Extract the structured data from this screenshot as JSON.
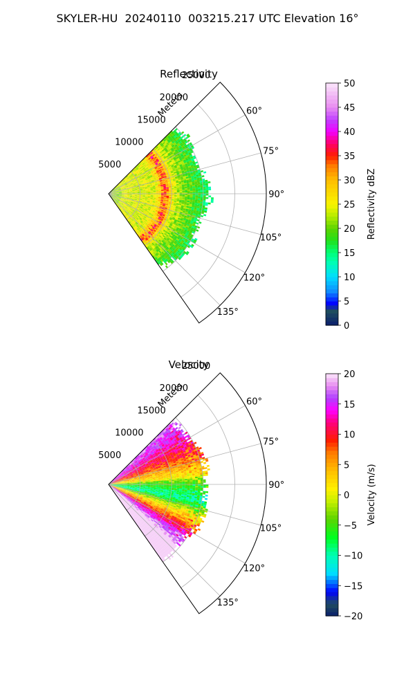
{
  "suptitle": "SKYLER-HU  20240110  003215.217 UTC Elevation 16°",
  "chart_data": [
    {
      "type": "heatmap",
      "subtype": "polar-sector (PPI radar scan)",
      "title": "Reflectivity",
      "radial_axis_label": "Meters",
      "radial_ticks": [
        5000,
        10000,
        15000,
        20000,
        25000
      ],
      "radial_tick_labels": [
        "5000",
        "10000",
        "15000",
        "20000",
        "25000"
      ],
      "rlim": [
        0,
        25000
      ],
      "angle_range_deg": [
        45,
        145
      ],
      "angle_ticks": [
        60,
        75,
        90,
        105,
        120,
        135
      ],
      "angle_tick_labels": [
        "60°",
        "75°",
        "90°",
        "105°",
        "120°",
        "135°"
      ],
      "grid": true,
      "data_extent_m": 15000,
      "field": "reflectivity",
      "colorbar": {
        "label": "Reflectivity dBZ",
        "range": [
          0,
          50
        ],
        "ticks": [
          0,
          5,
          10,
          15,
          20,
          25,
          30,
          35,
          40,
          45,
          50
        ],
        "tick_labels": [
          "0",
          "5",
          "10",
          "15",
          "20",
          "25",
          "30",
          "35",
          "40",
          "45",
          "50"
        ],
        "colormap": [
          [
            0,
            "#0b1f6e"
          ],
          [
            3,
            "#1f4d5e"
          ],
          [
            4.5,
            "#0000ff"
          ],
          [
            7,
            "#0f8cff"
          ],
          [
            10,
            "#00dcff"
          ],
          [
            13,
            "#00ffb4"
          ],
          [
            15,
            "#00ff78"
          ],
          [
            17.5,
            "#22e01a"
          ],
          [
            20,
            "#5cd400"
          ],
          [
            22.5,
            "#b4ec00"
          ],
          [
            25,
            "#f8f400"
          ],
          [
            30,
            "#ffbe00"
          ],
          [
            33,
            "#ff7a00"
          ],
          [
            35,
            "#ff1e00"
          ],
          [
            37.5,
            "#ff0066"
          ],
          [
            40,
            "#f200ff"
          ],
          [
            42.5,
            "#c040ff"
          ],
          [
            45,
            "#e88cf0"
          ],
          [
            50,
            "#fbe6fb"
          ]
        ]
      }
    },
    {
      "type": "heatmap",
      "subtype": "polar-sector (PPI radar scan)",
      "title": "Velocity",
      "radial_axis_label": "Meters",
      "radial_ticks": [
        5000,
        10000,
        15000,
        20000,
        25000
      ],
      "radial_tick_labels": [
        "5000",
        "10000",
        "15000",
        "20000",
        "25000"
      ],
      "rlim": [
        0,
        25000
      ],
      "angle_range_deg": [
        45,
        145
      ],
      "angle_ticks": [
        60,
        75,
        90,
        105,
        120,
        135
      ],
      "angle_tick_labels": [
        "60°",
        "75°",
        "90°",
        "105°",
        "120°",
        "135°"
      ],
      "grid": true,
      "data_extent_m": 15000,
      "field": "velocity",
      "colorbar": {
        "label": "Velocity (m/s)",
        "range": [
          -20,
          20
        ],
        "ticks": [
          -20,
          -15,
          -10,
          -5,
          0,
          5,
          10,
          15,
          20
        ],
        "tick_labels": [
          "−20",
          "−15",
          "−10",
          "−5",
          "0",
          "5",
          "10",
          "15",
          "20"
        ],
        "colormap": [
          [
            -20,
            "#0b1f6e"
          ],
          [
            -18,
            "#1f4d5e"
          ],
          [
            -16,
            "#0000ff"
          ],
          [
            -13,
            "#00dcff"
          ],
          [
            -10,
            "#00ffb4"
          ],
          [
            -7,
            "#00ff20"
          ],
          [
            -4,
            "#5cd400"
          ],
          [
            -1,
            "#c8f000"
          ],
          [
            1,
            "#fff000"
          ],
          [
            4,
            "#ffbe00"
          ],
          [
            7,
            "#ff7a00"
          ],
          [
            9,
            "#ff1e00"
          ],
          [
            12,
            "#ff0080"
          ],
          [
            14,
            "#ff00ff"
          ],
          [
            16,
            "#b040ff"
          ],
          [
            18,
            "#e88cf0"
          ],
          [
            20,
            "#fbe6fb"
          ]
        ]
      }
    }
  ]
}
